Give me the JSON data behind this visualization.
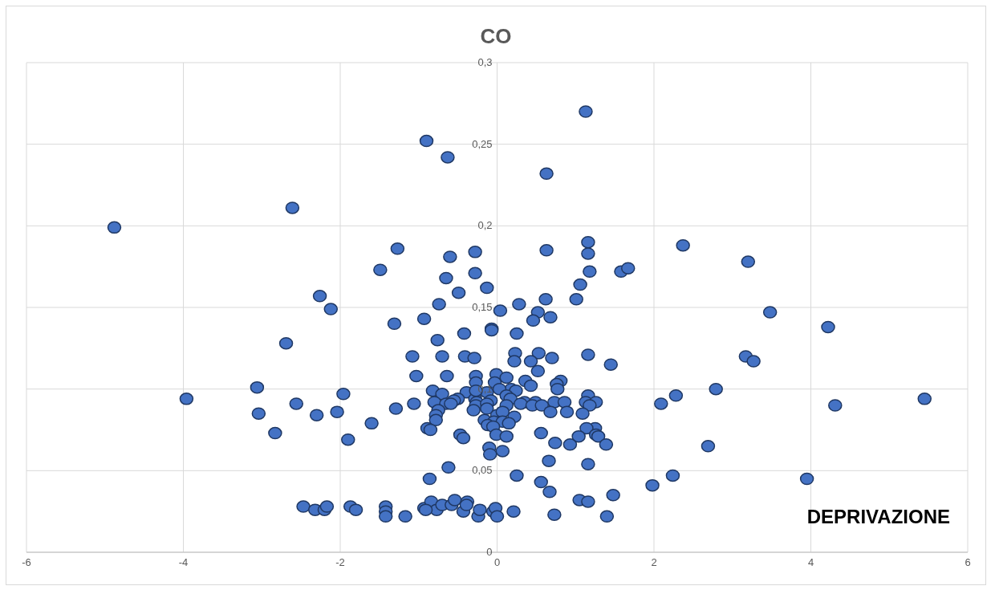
{
  "chart_data": {
    "type": "scatter",
    "title": "CO",
    "xlabel": "DEPRIVAZIONE",
    "x": [
      -4.88,
      -2.61,
      -0.9,
      -0.63,
      1.13,
      0.63,
      2.37,
      1.16,
      1.16,
      0.63,
      -1.27,
      -0.6,
      -0.28,
      -0.28,
      -0.65,
      -1.49,
      1.18,
      1.58,
      1.67,
      3.2,
      1.06,
      -0.13,
      -0.49,
      -2.26,
      0.62,
      1.01,
      -0.74,
      0.28,
      -2.12,
      0.04,
      0.52,
      3.48,
      -0.93,
      0.68,
      0.46,
      -1.31,
      4.22,
      -0.07,
      -0.07,
      -0.42,
      0.25,
      -0.76,
      -2.69,
      -1.08,
      -0.7,
      -0.41,
      -0.29,
      0.23,
      0.53,
      0.7,
      1.16,
      3.17,
      3.27,
      1.45,
      0.43,
      0.22,
      -1.03,
      -0.64,
      -0.27,
      -0.01,
      0.12,
      0.52,
      0.36,
      0.81,
      0.76,
      -0.27,
      -0.03,
      0.43,
      -3.06,
      2.79,
      0.77,
      0.18,
      0.03,
      -0.82,
      -0.39,
      -0.7,
      -0.13,
      0.24,
      -1.96,
      2.28,
      1.16,
      -3.96,
      5.45,
      -0.5,
      -0.28,
      0.12,
      -0.8,
      -0.55,
      -0.26,
      -0.08,
      0.17,
      0.35,
      0.49,
      0.73,
      0.86,
      1.13,
      1.26,
      -2.56,
      -1.06,
      -0.65,
      -0.59,
      -0.27,
      -0.13,
      0.12,
      0.3,
      0.45,
      0.57,
      1.18,
      2.09,
      4.31,
      -1.29,
      -0.3,
      -0.13,
      -0.75,
      -3.04,
      -2.3,
      -2.04,
      0.0,
      0.07,
      -0.78,
      0.68,
      0.89,
      1.09,
      -0.78,
      -0.16,
      0.22,
      -0.04,
      0.07,
      0.15,
      -0.12,
      -0.05,
      -1.6,
      -0.89,
      -0.85,
      1.25,
      1.14,
      -2.83,
      -0.47,
      -0.01,
      0.56,
      -0.43,
      0.12,
      1.04,
      1.26,
      1.29,
      -1.9,
      0.74,
      0.93,
      1.39,
      2.69,
      -0.1,
      -0.09,
      0.07,
      0.66,
      -0.62,
      1.16,
      -0.86,
      0.25,
      0.56,
      2.24,
      3.95,
      1.98,
      0.67,
      1.48,
      1.05,
      1.16,
      -2.47,
      -2.32,
      -2.2,
      -2.17,
      -1.87,
      -1.8,
      -1.42,
      -1.42,
      -1.42,
      -1.17,
      -0.93,
      -0.84,
      -0.77,
      -0.7,
      -0.58,
      -0.54,
      -0.43,
      -0.38,
      -0.39,
      -0.24,
      -0.22,
      -0.05,
      -0.02,
      0.0,
      0.21,
      0.73,
      1.4,
      -0.91,
      -0.27
    ],
    "series": [
      {
        "color": "#4472c4",
        "values": [
          0.199,
          0.211,
          0.252,
          0.242,
          0.27,
          0.232,
          0.188,
          0.19,
          0.183,
          0.185,
          0.186,
          0.181,
          0.184,
          0.171,
          0.168,
          0.173,
          0.172,
          0.172,
          0.174,
          0.178,
          0.164,
          0.162,
          0.159,
          0.157,
          0.155,
          0.155,
          0.152,
          0.152,
          0.149,
          0.148,
          0.147,
          0.147,
          0.143,
          0.144,
          0.142,
          0.14,
          0.138,
          0.137,
          0.136,
          0.134,
          0.134,
          0.13,
          0.128,
          0.12,
          0.12,
          0.12,
          0.119,
          0.122,
          0.122,
          0.119,
          0.121,
          0.12,
          0.117,
          0.115,
          0.117,
          0.117,
          0.108,
          0.108,
          0.108,
          0.109,
          0.107,
          0.111,
          0.105,
          0.105,
          0.103,
          0.104,
          0.104,
          0.102,
          0.101,
          0.1,
          0.1,
          0.1,
          0.1,
          0.099,
          0.098,
          0.097,
          0.098,
          0.099,
          0.097,
          0.096,
          0.096,
          0.094,
          0.094,
          0.094,
          0.094,
          0.096,
          0.092,
          0.093,
          0.092,
          0.093,
          0.094,
          0.092,
          0.092,
          0.092,
          0.092,
          0.092,
          0.092,
          0.091,
          0.091,
          0.091,
          0.091,
          0.09,
          0.091,
          0.09,
          0.091,
          0.09,
          0.09,
          0.09,
          0.091,
          0.09,
          0.088,
          0.087,
          0.088,
          0.087,
          0.085,
          0.084,
          0.086,
          0.084,
          0.086,
          0.084,
          0.086,
          0.086,
          0.085,
          0.081,
          0.081,
          0.083,
          0.08,
          0.08,
          0.079,
          0.078,
          0.077,
          0.079,
          0.076,
          0.075,
          0.076,
          0.076,
          0.073,
          0.072,
          0.072,
          0.073,
          0.07,
          0.071,
          0.071,
          0.072,
          0.071,
          0.069,
          0.067,
          0.066,
          0.066,
          0.065,
          0.064,
          0.06,
          0.062,
          0.056,
          0.052,
          0.054,
          0.045,
          0.047,
          0.043,
          0.047,
          0.045,
          0.041,
          0.037,
          0.035,
          0.032,
          0.031,
          0.028,
          0.026,
          0.026,
          0.028,
          0.028,
          0.026,
          0.028,
          0.025,
          0.022,
          0.022,
          0.027,
          0.031,
          0.026,
          0.029,
          0.029,
          0.032,
          0.025,
          0.031,
          0.029,
          0.022,
          0.026,
          0.025,
          0.027,
          0.022,
          0.025,
          0.023,
          0.022,
          0.026,
          0.099
        ]
      }
    ],
    "marker": "circle",
    "grid": true,
    "xlim": [
      -6,
      6
    ],
    "xticks": [
      -6,
      -4,
      -2,
      0,
      2,
      4,
      6
    ],
    "ylim": [
      0,
      0.3
    ],
    "yticks": [
      0,
      {
        "value": 0.05,
        "label": "0,05"
      },
      {
        "value": 0.1,
        "label": "0,1"
      },
      {
        "value": 0.15,
        "label": "0,15"
      },
      {
        "value": 0.2,
        "label": "0,2"
      },
      {
        "value": 0.25,
        "label": "0,25"
      },
      {
        "value": 0.3,
        "label": "0,3"
      }
    ]
  }
}
